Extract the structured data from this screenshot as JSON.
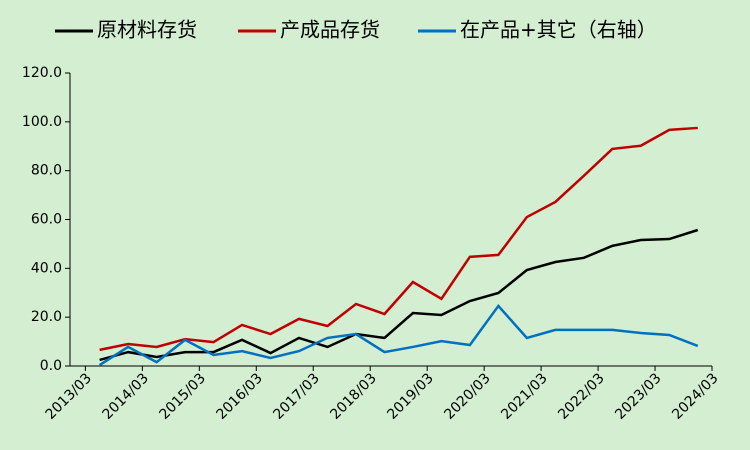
{
  "chart_data": {
    "type": "line",
    "x": [
      2013.42,
      2013.92,
      2014.42,
      2014.92,
      2015.42,
      2015.92,
      2016.42,
      2016.92,
      2017.42,
      2017.92,
      2018.42,
      2018.92,
      2019.42,
      2019.92,
      2020.42,
      2020.92,
      2021.42,
      2021.92,
      2022.42,
      2022.92,
      2023.42,
      2023.92
    ],
    "series": [
      {
        "name": "原材料存货",
        "color": "#000000",
        "values": [
          2.5,
          5.7,
          3.7,
          5.7,
          5.7,
          10.7,
          5.3,
          11.5,
          7.8,
          13.1,
          11.5,
          21.7,
          20.9,
          26.6,
          29.9,
          39.3,
          42.6,
          44.3,
          49.2,
          51.6,
          52,
          55.7
        ]
      },
      {
        "name": "产成品存货",
        "color": "#c00000",
        "values": [
          6.6,
          9,
          7.8,
          11,
          9.8,
          16.8,
          13.1,
          19.3,
          16.4,
          25.4,
          21.3,
          34.4,
          27.5,
          44.7,
          45.5,
          61,
          67.2,
          77.9,
          88.9,
          90.2,
          96.7,
          97.5
        ]
      },
      {
        "name": "在产品+其它（右轴）",
        "color": "#0070c0",
        "values": [
          0.4,
          7.8,
          1.6,
          10.7,
          4.5,
          6.1,
          3.3,
          6.1,
          11.5,
          13.1,
          5.7,
          7.8,
          10.2,
          8.6,
          24.6,
          11.5,
          14.8,
          14.8,
          14.8,
          13.5,
          12.7,
          8.2
        ]
      }
    ],
    "xlim": [
      2012.9,
      2024.17
    ],
    "xticks": [
      {
        "value": 2013.17,
        "label": "2013/03"
      },
      {
        "value": 2014.17,
        "label": "2014/03"
      },
      {
        "value": 2015.17,
        "label": "2015/03"
      },
      {
        "value": 2016.17,
        "label": "2016/03"
      },
      {
        "value": 2017.17,
        "label": "2017/03"
      },
      {
        "value": 2018.17,
        "label": "2018/03"
      },
      {
        "value": 2019.17,
        "label": "2019/03"
      },
      {
        "value": 2020.17,
        "label": "2020/03"
      },
      {
        "value": 2021.17,
        "label": "2021/03"
      },
      {
        "value": 2022.17,
        "label": "2022/03"
      },
      {
        "value": 2023.17,
        "label": "2023/03"
      },
      {
        "value": 2024.17,
        "label": "2024/03"
      }
    ],
    "ylim": [
      0,
      120
    ],
    "yticks": [
      {
        "value": 0,
        "label": "0.0"
      },
      {
        "value": 20,
        "label": "20.0"
      },
      {
        "value": 40,
        "label": "40.0"
      },
      {
        "value": 60,
        "label": "60.0"
      },
      {
        "value": 80,
        "label": "80.0"
      },
      {
        "value": 100,
        "label": "100.0"
      },
      {
        "value": 120,
        "label": "120.0"
      }
    ]
  }
}
